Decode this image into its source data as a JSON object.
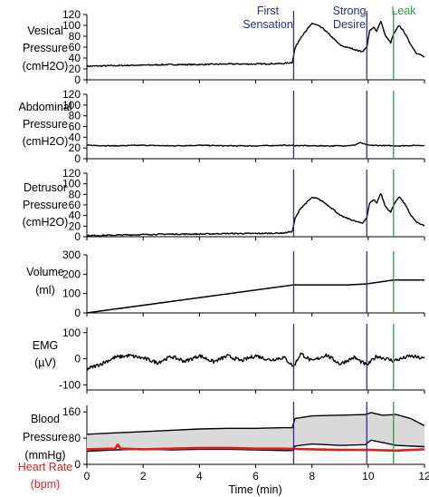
{
  "chart_data": {
    "type": "line",
    "x_axis": {
      "label": "Time (min)",
      "range": [
        0,
        12
      ],
      "ticks": [
        0,
        2,
        4,
        6,
        8,
        10,
        12
      ]
    },
    "events": [
      {
        "name": "First Sensation",
        "label_lines": [
          "First",
          "Sensation"
        ],
        "time": 7.35,
        "color": "#2b2e8c"
      },
      {
        "name": "Strong Desire",
        "label_lines": [
          "Strong",
          "Desire"
        ],
        "time": 9.95,
        "color": "#2b2e8c"
      },
      {
        "name": "Leak",
        "label_lines": [
          "Leak"
        ],
        "time": 10.9,
        "color": "#22a046"
      }
    ],
    "panels": [
      {
        "id": "vesical",
        "label_lines": [
          "Vesical",
          "Pressure",
          "(cmH2O)"
        ],
        "ylim": [
          0,
          120
        ],
        "yticks": [
          0,
          20,
          40,
          60,
          80,
          100,
          120
        ],
        "series": [
          {
            "color": "#000000",
            "x": [
              0,
              1,
              2,
              3,
              4,
              5,
              6,
              7,
              7.3,
              7.4,
              7.6,
              7.8,
              8.0,
              8.2,
              8.4,
              8.6,
              8.8,
              9.0,
              9.2,
              9.4,
              9.6,
              9.8,
              9.95,
              10.05,
              10.2,
              10.3,
              10.45,
              10.6,
              10.8,
              10.9,
              11.1,
              11.3,
              11.5,
              11.7,
              12
            ],
            "y": [
              25,
              26,
              27,
              28,
              28,
              29,
              29,
              30,
              32,
              58,
              78,
              90,
              104,
              100,
              94,
              84,
              74,
              64,
              60,
              58,
              54,
              52,
              60,
              90,
              96,
              90,
              108,
              82,
              68,
              84,
              100,
              86,
              66,
              50,
              42
            ]
          }
        ]
      },
      {
        "id": "abdominal",
        "label_lines": [
          "Abdominal",
          "Pressure",
          "(cmH2O)"
        ],
        "ylim": [
          0,
          120
        ],
        "yticks": [
          0,
          20,
          40,
          60,
          80,
          100,
          120
        ],
        "series": [
          {
            "color": "#000000",
            "x": [
              0,
              1,
              2,
              3,
              4,
              5,
              6,
              7,
              8,
              9,
              9.5,
              9.7,
              10,
              11,
              12
            ],
            "y": [
              25,
              24,
              25,
              24,
              25,
              24,
              24,
              25,
              24,
              24,
              25,
              30,
              25,
              24,
              25
            ]
          }
        ]
      },
      {
        "id": "detrusor",
        "label_lines": [
          "Detrusor",
          "Pressure",
          "(cmH2O)"
        ],
        "ylim": [
          0,
          120
        ],
        "yticks": [
          0,
          20,
          40,
          60,
          80,
          100,
          120
        ],
        "series": [
          {
            "color": "#000000",
            "x": [
              0,
              1,
              2,
              3,
              4,
              5,
              6,
              7,
              7.3,
              7.4,
              7.6,
              7.8,
              8.0,
              8.2,
              8.4,
              8.6,
              8.8,
              9.0,
              9.2,
              9.4,
              9.6,
              9.8,
              9.95,
              10.05,
              10.2,
              10.3,
              10.45,
              10.6,
              10.8,
              10.9,
              11.1,
              11.3,
              11.5,
              11.7,
              12
            ],
            "y": [
              2,
              3,
              4,
              5,
              5,
              6,
              6,
              7,
              10,
              34,
              54,
              64,
              74,
              72,
              66,
              58,
              50,
              40,
              36,
              32,
              28,
              26,
              36,
              64,
              70,
              64,
              82,
              58,
              46,
              60,
              76,
              62,
              42,
              28,
              20
            ]
          }
        ]
      },
      {
        "id": "volume",
        "label_lines": [
          "Volume",
          "(ml)"
        ],
        "ylim": [
          0,
          300
        ],
        "yticks": [
          0,
          100,
          200,
          300
        ],
        "series": [
          {
            "color": "#000000",
            "x": [
              0,
              7.35,
              9.3,
              9.95,
              10.9,
              12
            ],
            "y": [
              0,
              145,
              145,
              150,
              170,
              170
            ]
          }
        ]
      },
      {
        "id": "emg",
        "label_lines": [
          "EMG",
          "(µV)"
        ],
        "ylim": [
          -120,
          120
        ],
        "yticks": [
          -100,
          0,
          100
        ],
        "series": [
          {
            "color": "#000000",
            "x": [
              0,
              0.5,
              1,
              1.5,
              2,
              2.5,
              3,
              3.5,
              4,
              4.5,
              5,
              5.5,
              6,
              6.5,
              7,
              7.35,
              7.6,
              8,
              8.5,
              9,
              9.5,
              9.95,
              10.3,
              10.9,
              11.5,
              12
            ],
            "y": [
              -40,
              -20,
              5,
              12,
              2,
              -15,
              8,
              -10,
              12,
              -12,
              10,
              -8,
              12,
              -5,
              5,
              -30,
              20,
              -10,
              15,
              -20,
              5,
              -25,
              10,
              -8,
              10,
              0
            ]
          }
        ]
      },
      {
        "id": "blood",
        "label_lines": [
          "Blood",
          "Pressure",
          "(mmHg)"
        ],
        "extra_label_lines": [
          "Heart Rate",
          "(bpm)"
        ],
        "extra_label_color": "#e0201b",
        "ylim": [
          0,
          180
        ],
        "yticks": [
          0,
          80,
          160
        ],
        "series": [
          {
            "name": "systolic",
            "color": "#000000",
            "x": [
              0,
              1,
              2,
              3,
              4,
              5,
              6,
              7,
              7.3,
              7.4,
              8,
              9,
              9.9,
              10.1,
              10.5,
              11,
              11.5,
              12
            ],
            "y": [
              92,
              96,
              100,
              104,
              108,
              110,
              110,
              112,
              112,
              140,
              148,
              150,
              152,
              158,
              150,
              152,
              140,
              118
            ]
          },
          {
            "name": "diastolic",
            "color": "#000000",
            "x": [
              0,
              1,
              2,
              3,
              4,
              5,
              6,
              7,
              7.3,
              7.4,
              8,
              9,
              9.9,
              10.1,
              11,
              12
            ],
            "y": [
              40,
              44,
              46,
              44,
              46,
              46,
              44,
              42,
              42,
              56,
              62,
              58,
              60,
              74,
              58,
              54
            ]
          },
          {
            "name": "heart rate",
            "color": "#e0201b",
            "x": [
              0,
              1,
              1.1,
              1.2,
              2,
              3,
              4,
              5,
              6,
              7,
              8,
              9,
              10,
              11,
              12
            ],
            "y": [
              46,
              48,
              60,
              48,
              46,
              48,
              50,
              50,
              48,
              48,
              46,
              44,
              44,
              42,
              46
            ]
          }
        ]
      }
    ]
  }
}
